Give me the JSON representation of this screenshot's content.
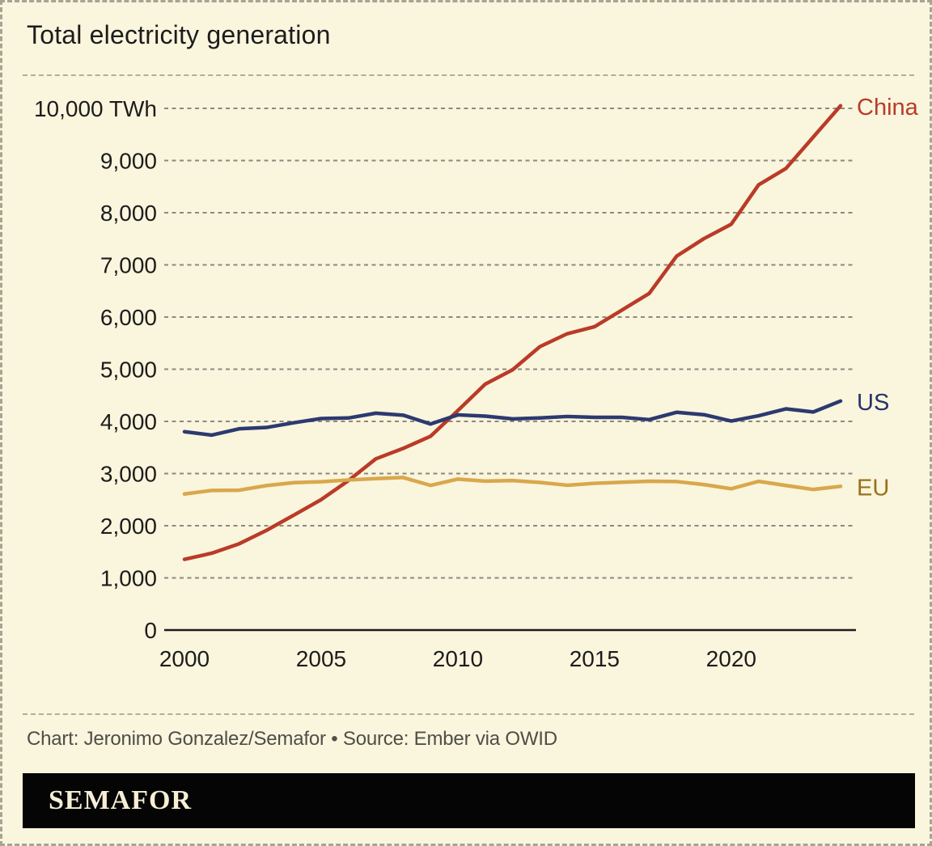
{
  "header": {
    "title": "Total electricity generation"
  },
  "footer": {
    "credit": "Chart: Jeronimo Gonzalez/Semafor • Source: Ember via OWID",
    "logo_text": "SEMAFOR"
  },
  "colors": {
    "background": "#faf5dd",
    "border": "#a9a392",
    "gridline": "#8d897e",
    "axis_line": "#1c1c1c",
    "tick_text": "#1c1c1c",
    "china": "#b93b28",
    "us": "#2c3a70",
    "eu_line": "#d9a74c",
    "eu_label": "#97711c",
    "credit_text": "#4e4e48",
    "logo_bg": "#050505",
    "logo_fg": "#f6efd5"
  },
  "chart_data": {
    "type": "line",
    "title": "Total electricity generation",
    "unit": "TWh",
    "ylim": [
      0,
      10000
    ],
    "ytick_interval": 1000,
    "ytick_top_label": "10,000 TWh",
    "xticks": [
      2000,
      2005,
      2010,
      2015,
      2020
    ],
    "x_range": [
      2000,
      2024
    ],
    "grid": "dashed horizontal gridlines, solid baseline axis at 0",
    "legend_position": "line-end labels at right",
    "x": [
      2000,
      2001,
      2002,
      2003,
      2004,
      2005,
      2006,
      2007,
      2008,
      2009,
      2010,
      2011,
      2012,
      2013,
      2014,
      2015,
      2016,
      2017,
      2018,
      2019,
      2020,
      2021,
      2022,
      2023,
      2024
    ],
    "series": [
      {
        "name": "China",
        "color": "#b93b28",
        "label_color": "#b93b28",
        "values": [
          1356,
          1473,
          1654,
          1911,
          2203,
          2500,
          2866,
          3282,
          3482,
          3714,
          4207,
          4713,
          4988,
          5432,
          5680,
          5815,
          6133,
          6453,
          7166,
          7503,
          7779,
          8534,
          8848,
          9450,
          10050
        ]
      },
      {
        "name": "US",
        "color": "#2c3a70",
        "label_color": "#26336a",
        "values": [
          3802,
          3737,
          3858,
          3883,
          3974,
          4055,
          4065,
          4157,
          4119,
          3950,
          4125,
          4100,
          4048,
          4066,
          4094,
          4078,
          4077,
          4034,
          4174,
          4128,
          4007,
          4108,
          4240,
          4180,
          4390
        ]
      },
      {
        "name": "EU",
        "color": "#d9a74c",
        "label_color": "#97711c",
        "values": [
          2608,
          2677,
          2681,
          2769,
          2826,
          2843,
          2877,
          2903,
          2924,
          2773,
          2894,
          2855,
          2866,
          2829,
          2776,
          2813,
          2833,
          2853,
          2846,
          2789,
          2708,
          2851,
          2771,
          2695,
          2755
        ]
      }
    ]
  }
}
